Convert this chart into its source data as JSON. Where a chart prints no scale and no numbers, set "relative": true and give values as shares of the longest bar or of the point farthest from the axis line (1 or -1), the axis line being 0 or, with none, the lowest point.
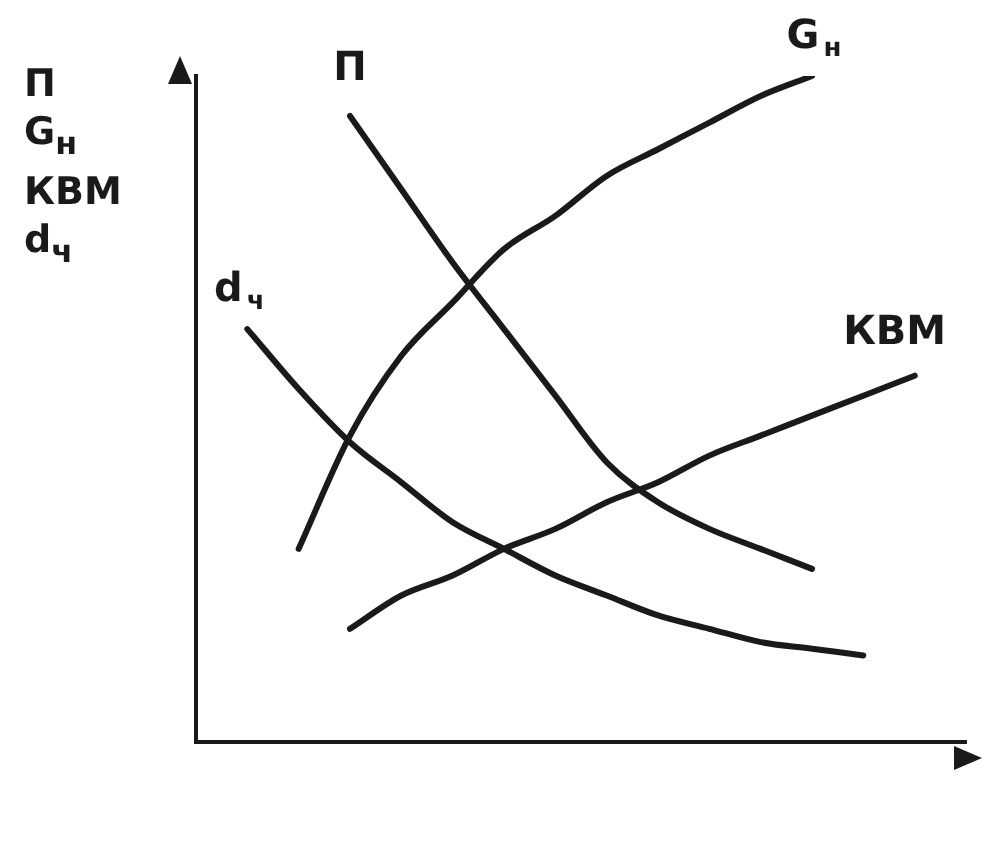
{
  "chart_data": {
    "type": "line",
    "relative": true,
    "ylabel": "П G$_{н}$ КВМ d$_{ч}$",
    "categories": [
      null,
      null,
      null,
      null,
      null,
      null,
      null,
      null,
      null,
      null,
      null,
      null,
      null,
      null,
      null,
      null
    ],
    "legend": false,
    "grid": false,
    "marker": "none",
    "line_style": "solid",
    "series": [
      {
        "name": "П",
        "color": "#1a1a1a",
        "values": [
          null,
          null,
          null,
          0.94,
          0.83,
          0.72,
          0.62,
          0.52,
          0.42,
          0.36,
          0.32,
          0.29,
          0.26,
          null,
          null,
          null
        ]
      },
      {
        "name": "G$_{н}$",
        "color": "#1a1a1a",
        "values": [
          null,
          null,
          0.29,
          0.46,
          0.58,
          0.66,
          0.74,
          0.79,
          0.85,
          0.89,
          0.93,
          0.97,
          1.0,
          null,
          null,
          null
        ]
      },
      {
        "name": "КВМ",
        "color": "#1a1a1a",
        "values": [
          null,
          null,
          null,
          0.17,
          0.22,
          0.25,
          0.29,
          0.32,
          0.36,
          0.39,
          0.43,
          0.46,
          0.49,
          0.52,
          0.55,
          null
        ]
      },
      {
        "name": "d$_{ч}$",
        "color": "#1a1a1a",
        "values": [
          null,
          0.62,
          0.53,
          0.45,
          0.39,
          0.33,
          0.29,
          0.25,
          0.22,
          0.19,
          0.17,
          0.15,
          0.14,
          0.13,
          null,
          null
        ]
      }
    ]
  }
}
